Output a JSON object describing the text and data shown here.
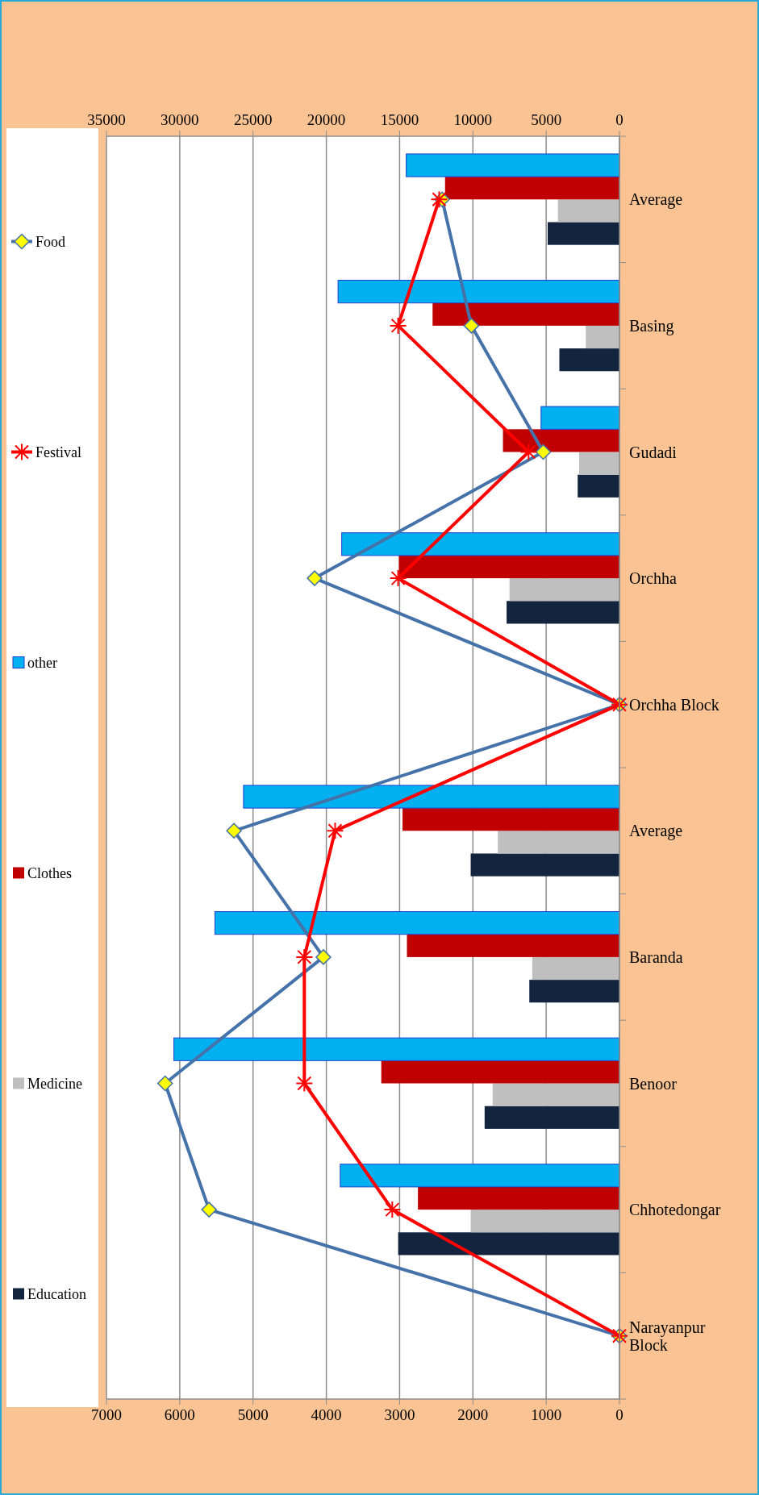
{
  "chart_data": {
    "type": "bar",
    "orientation": "horizontal",
    "categories": [
      "Average",
      "Basing",
      "Gudadi",
      "Orchha",
      "Orchha Block",
      "Average",
      "Baranda",
      "Benoor",
      "Chhotedongar",
      "Narayanpur Block"
    ],
    "series": [
      {
        "name": "Education",
        "color": "#13243f",
        "values": [
          980,
          820,
          570,
          1540,
          0,
          2030,
          1230,
          1840,
          3020,
          0
        ]
      },
      {
        "name": "Medicine",
        "color": "#bfbfbf",
        "values": [
          840,
          460,
          550,
          1500,
          0,
          1660,
          1190,
          1730,
          2030,
          0
        ]
      },
      {
        "name": "Clothes",
        "color": "#c00000",
        "values": [
          2380,
          2550,
          1590,
          3010,
          0,
          2960,
          2900,
          3250,
          2750,
          0
        ]
      },
      {
        "name": "other",
        "color": "#00b0f0",
        "values": [
          2910,
          3840,
          1070,
          3790,
          0,
          5130,
          5520,
          6080,
          3810,
          0
        ]
      },
      {
        "name": "Festival",
        "color": "#ff0000",
        "type": "line",
        "axis": "x2",
        "marker": "cross",
        "values": [
          12300,
          15100,
          6200,
          15100,
          0,
          19400,
          21500,
          21500,
          15500,
          0
        ]
      },
      {
        "name": "Food",
        "color": "#4672aa",
        "type": "line",
        "axis": "x2",
        "marker": "diamond",
        "values": [
          12100,
          10100,
          5200,
          20800,
          0,
          26300,
          20200,
          31000,
          28000,
          0
        ]
      }
    ],
    "xlim": [
      7000,
      0
    ],
    "xticks": [
      0,
      1000,
      2000,
      3000,
      4000,
      5000,
      6000,
      7000
    ],
    "x2lim": [
      35000,
      0
    ],
    "x2ticks": [
      0,
      5000,
      10000,
      15000,
      20000,
      25000,
      30000,
      35000
    ],
    "grid": "x",
    "legend": "left"
  }
}
